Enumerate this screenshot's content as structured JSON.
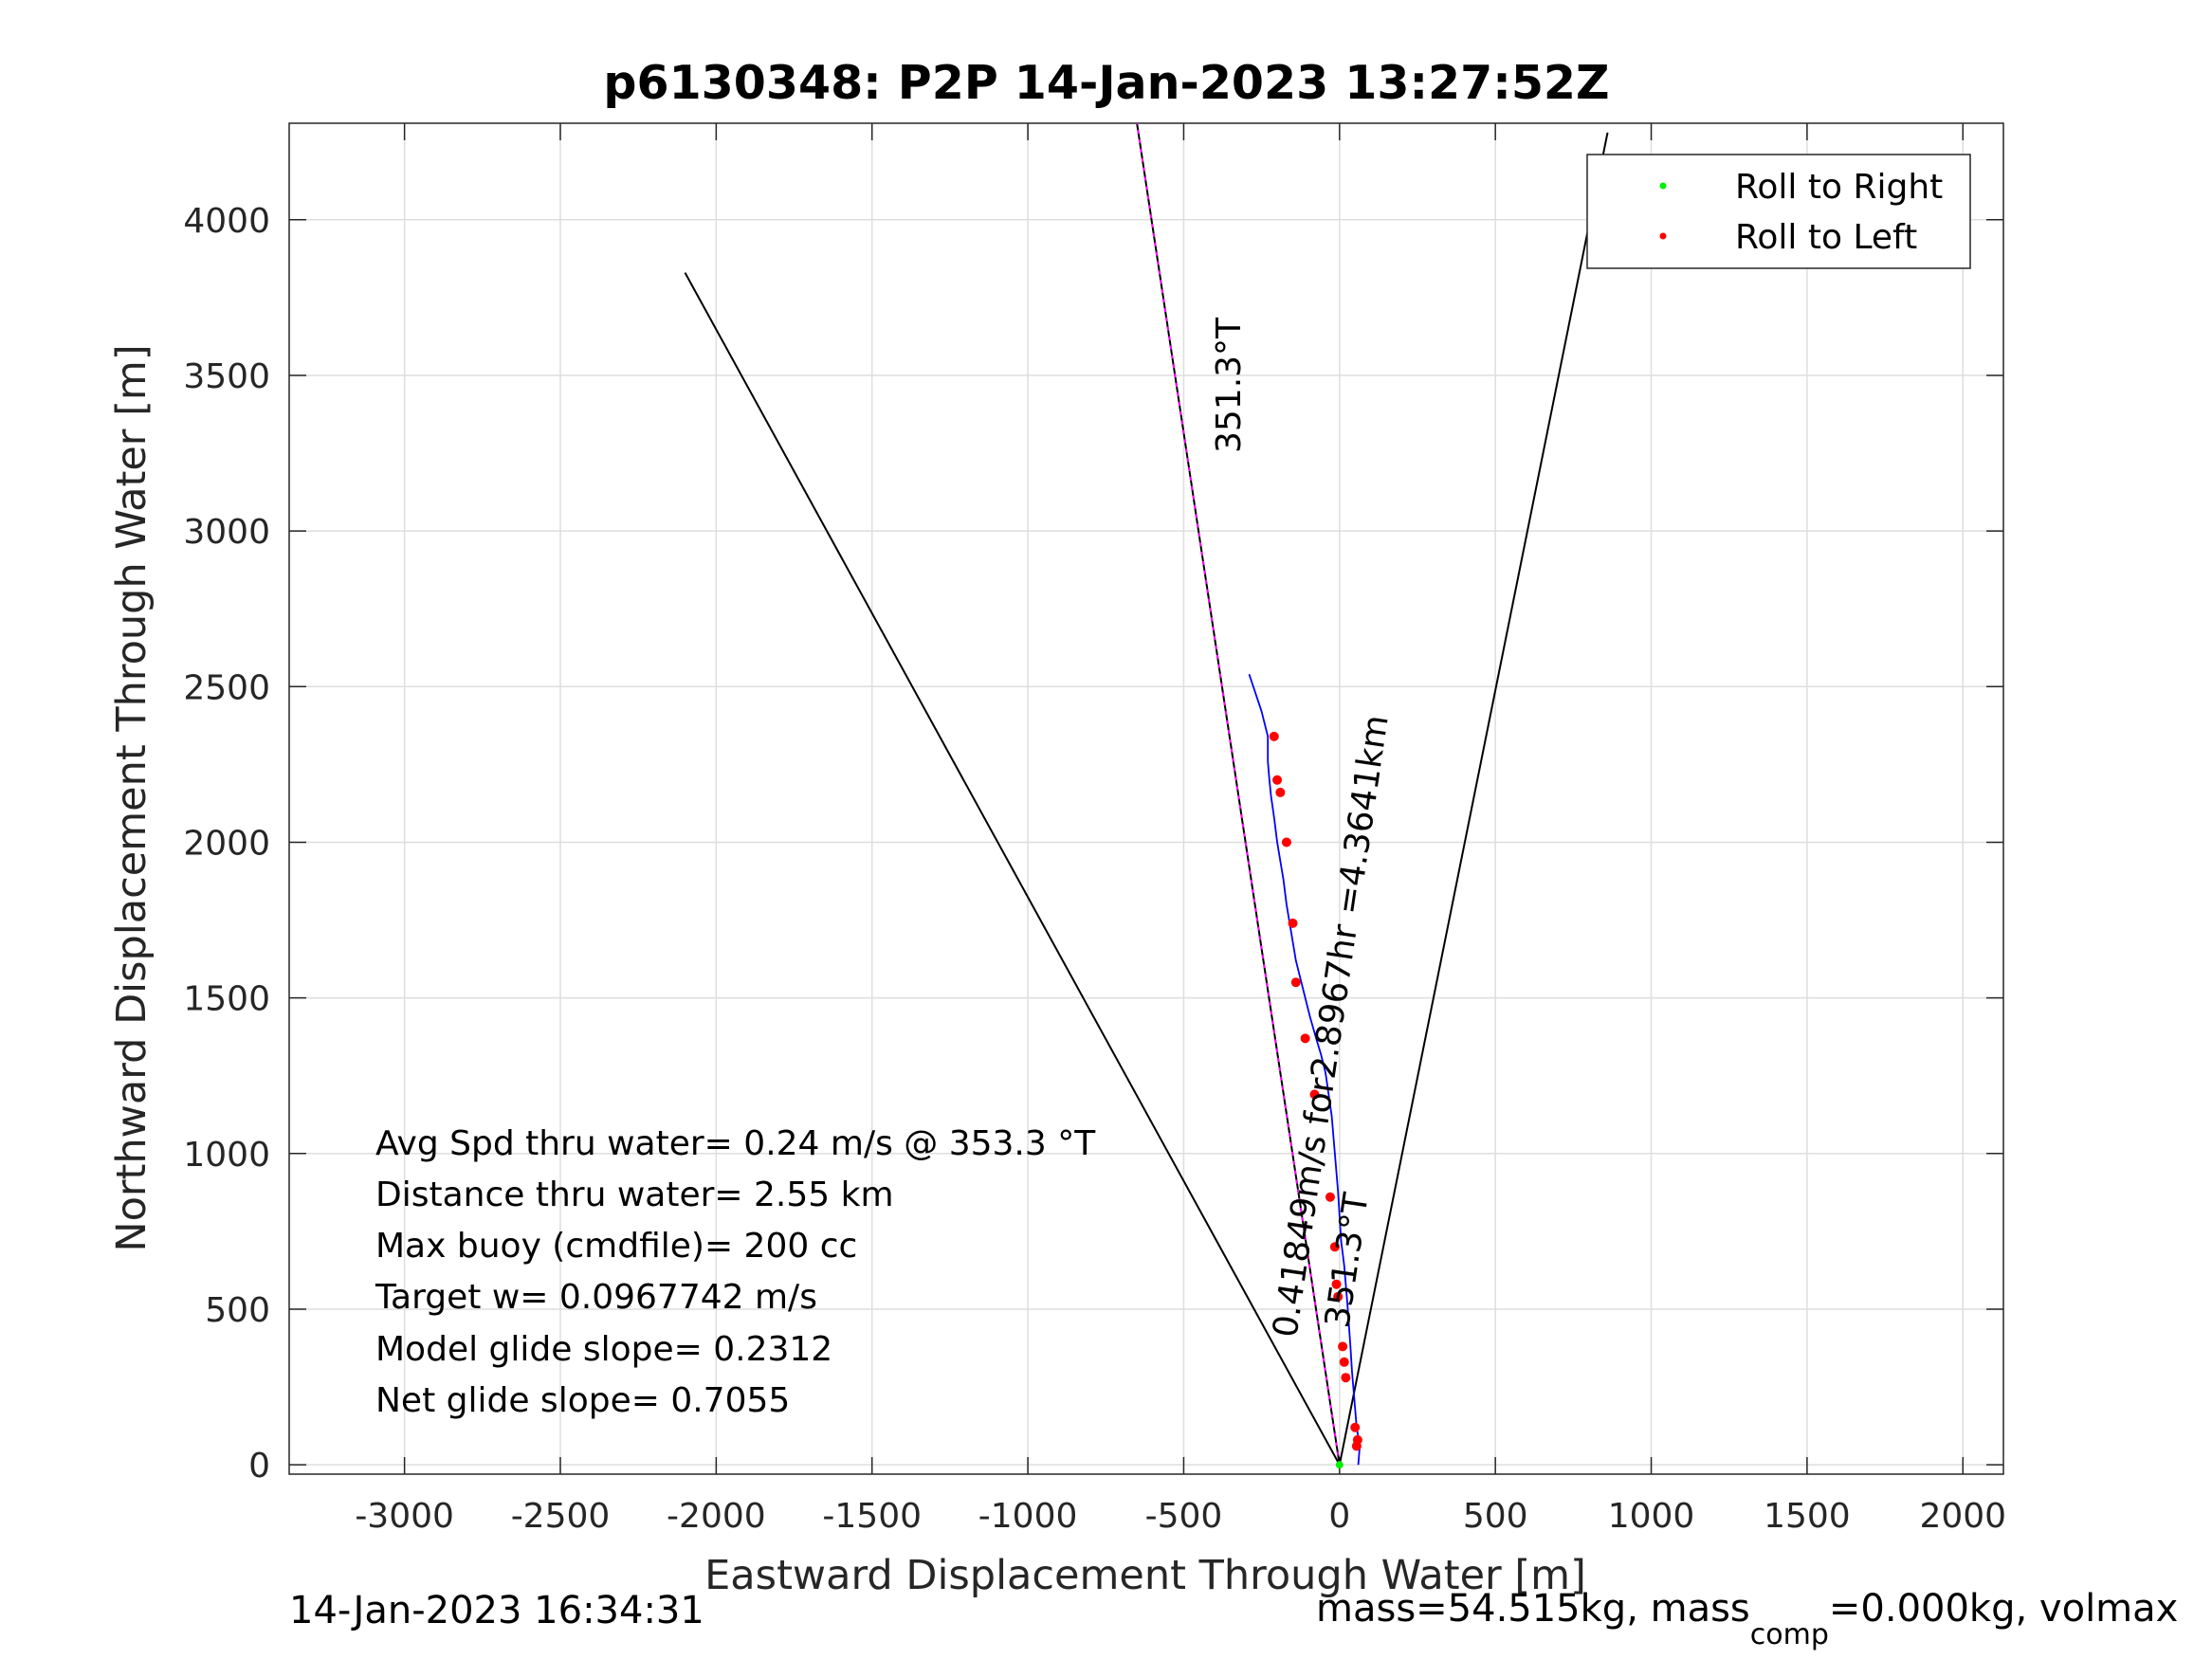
{
  "chart_data": {
    "type": "line",
    "title": "p6130348: P2P 14-Jan-2023 13:27:52Z",
    "xlabel": "Eastward Displacement Through Water [m]",
    "ylabel": "Northward Displacement Through Water [m]",
    "xlim": [
      -3370,
      2130
    ],
    "ylim": [
      -30,
      4310
    ],
    "xticks": [
      -3000,
      -2500,
      -2000,
      -1500,
      -1000,
      -500,
      0,
      500,
      1000,
      1500,
      2000
    ],
    "yticks": [
      0,
      500,
      1000,
      1500,
      2000,
      2500,
      3000,
      3500,
      4000
    ],
    "grid": true,
    "legend": {
      "placement": "top-right",
      "entries": [
        {
          "label": "Roll to Right",
          "color": "#00ee00"
        },
        {
          "label": "Roll to Left",
          "color": "#ff0000"
        }
      ]
    },
    "lines": [
      {
        "id": "west-bound",
        "color": "#000000",
        "x": [
          0,
          -2100
        ],
        "y": [
          0,
          3830
        ]
      },
      {
        "id": "east-bound",
        "color": "#000000",
        "x": [
          0,
          860
        ],
        "y": [
          0,
          4280
        ]
      },
      {
        "id": "heading",
        "color": "#000000",
        "overlay": "#ff00ff",
        "x": [
          0,
          -650
        ],
        "y": [
          0,
          4310
        ]
      }
    ],
    "track": {
      "color": "#0000ff",
      "x": [
        60,
        65,
        55,
        50,
        45,
        40,
        35,
        30,
        25,
        20,
        15,
        5,
        0,
        -5,
        -10,
        -15,
        -20,
        -25,
        -35,
        -45,
        -60,
        -75,
        -95,
        -110,
        -125,
        -140,
        -150,
        -160,
        -170,
        -180,
        -190,
        -200,
        -210,
        -220,
        -225,
        -230,
        -230,
        -240,
        -250,
        -260,
        -270,
        -280,
        -290
      ],
      "y": [
        0,
        60,
        120,
        180,
        240,
        300,
        380,
        450,
        520,
        580,
        640,
        720,
        800,
        880,
        940,
        1000,
        1060,
        1120,
        1190,
        1260,
        1320,
        1370,
        1440,
        1500,
        1560,
        1620,
        1680,
        1740,
        1800,
        1880,
        1940,
        2000,
        2080,
        2150,
        2200,
        2260,
        2340,
        2380,
        2420,
        2450,
        2480,
        2510,
        2540
      ]
    },
    "roll_left_points": {
      "color": "#ff0000",
      "x": [
        55,
        58,
        50,
        20,
        15,
        10,
        -5,
        -10,
        -15,
        -30,
        -80,
        -110,
        -140,
        -150,
        -170,
        -190,
        -200,
        -210
      ],
      "y": [
        60,
        80,
        120,
        280,
        330,
        380,
        540,
        580,
        700,
        860,
        1190,
        1370,
        1550,
        1740,
        2000,
        2160,
        2200,
        2340
      ]
    },
    "roll_right_points": {
      "color": "#00ee00",
      "x": [
        0
      ],
      "y": [
        0
      ]
    },
    "heading_label": "351.3°T",
    "heading_label_lower": "351.3°T",
    "speed_label": "0.41849m/s for2.8967hr =4.3641km",
    "stats": [
      "Avg Spd thru water=  0.24 m/s @ 353.3 °T",
      "Distance thru water=  2.55 km",
      "Max buoy (cmdfile)= 200 cc",
      "Target w= 0.0967742 m/s",
      "Model glide slope= 0.2312",
      "Net glide slope= 0.7055"
    ]
  },
  "footer": {
    "timestamp": "14-Jan-2023 16:34:31",
    "mass_prefix": "mass=54.515kg, mass",
    "mass_sub": "comp",
    "mass_suffix": "=0.000kg, volmax"
  }
}
